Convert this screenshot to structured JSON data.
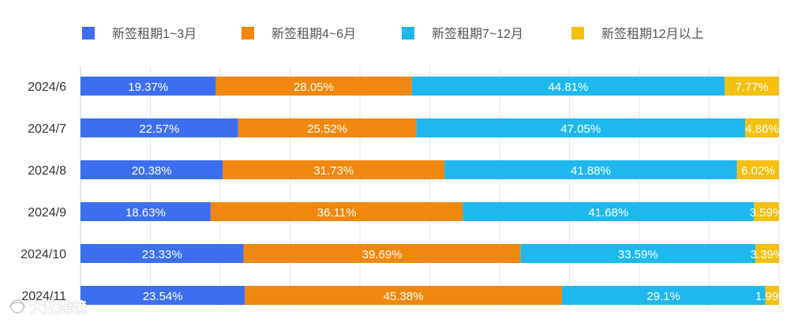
{
  "chart_data": {
    "type": "bar",
    "orientation": "horizontal",
    "stacked": true,
    "categories": [
      "2024/6",
      "2024/7",
      "2024/8",
      "2024/9",
      "2024/10",
      "2024/11"
    ],
    "series": [
      {
        "name": "新签租期1~3月",
        "color": "#3D6EF0",
        "values": [
          19.37,
          22.57,
          20.38,
          18.63,
          23.33,
          23.54
        ],
        "labels": [
          "19.37%",
          "22.57%",
          "20.38%",
          "18.63%",
          "23.33%",
          "23.54%"
        ]
      },
      {
        "name": "新签租期4~6月",
        "color": "#F0880F",
        "values": [
          28.05,
          25.52,
          31.73,
          36.11,
          39.69,
          45.38
        ],
        "labels": [
          "28.05%",
          "25.52%",
          "31.73%",
          "36.11%",
          "39.69%",
          "45.38%"
        ]
      },
      {
        "name": "新签租期7~12月",
        "color": "#1EB8EE",
        "values": [
          44.81,
          47.05,
          41.88,
          41.68,
          33.59,
          29.1
        ],
        "labels": [
          "44.81%",
          "47.05%",
          "41.88%",
          "41.68%",
          "33.59%",
          "29.1%"
        ]
      },
      {
        "name": "新签租期12月以上",
        "color": "#F5C010",
        "values": [
          7.77,
          4.86,
          6.02,
          3.59,
          3.39,
          1.99
        ],
        "labels": [
          "7.77%",
          "4.86%",
          "6.02%",
          "3.59%",
          "3.39%",
          "1.99%"
        ]
      }
    ],
    "xlim": [
      0,
      100
    ],
    "grid": true,
    "legend_position": "top"
  },
  "watermark": "大数跨境"
}
